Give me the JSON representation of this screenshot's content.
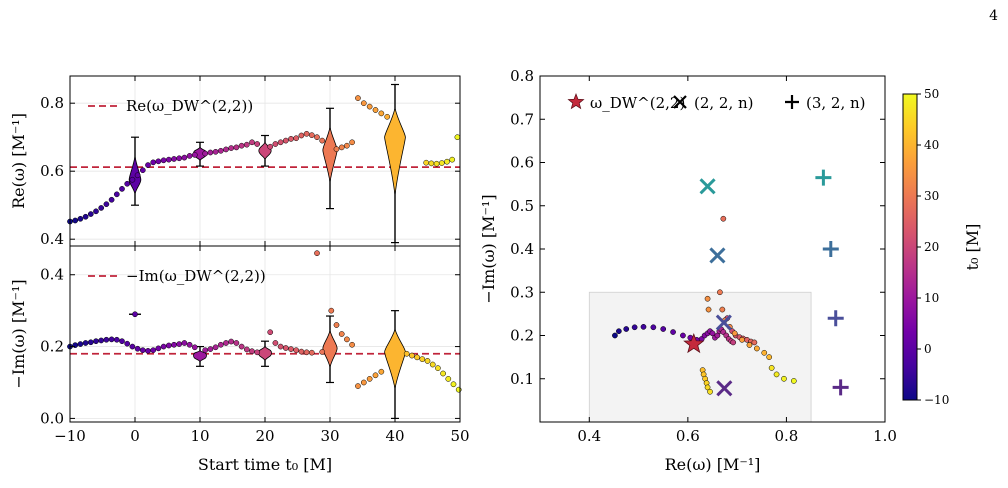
{
  "page_number": "4",
  "colors": {
    "dw_line": "#c0243a",
    "cmap": [
      "#0d0887",
      "#46039f",
      "#7201a8",
      "#9c179e",
      "#bd3786",
      "#d8576b",
      "#ed7953",
      "#fb9f3a",
      "#fdca26",
      "#f0f921"
    ],
    "violin_face": "#e8e8e8"
  },
  "chart_data": [
    {
      "id": "re-vs-t0",
      "type": "scatter",
      "xlabel": "Start time t₀ [M]",
      "ylabel": "Re(ω) [M⁻¹]",
      "xlim": [
        -10,
        50
      ],
      "ylim": [
        0.38,
        0.88
      ],
      "xticks": [
        "−10",
        "0",
        "10",
        "20",
        "30",
        "40",
        "50"
      ],
      "yticks": [
        "0.4",
        "0.6",
        "0.8"
      ],
      "grid": true,
      "legend": {
        "position": "top-left",
        "entries": [
          "Re(ω_DW^(2,2))"
        ]
      },
      "hline": {
        "label": "Re(ω_DW^(2,2))",
        "y": 0.612
      },
      "points": [
        [
          -10,
          0.452
        ],
        [
          -9.2,
          0.455
        ],
        [
          -8.4,
          0.46
        ],
        [
          -7.6,
          0.466
        ],
        [
          -6.8,
          0.474
        ],
        [
          -6,
          0.482
        ],
        [
          -5.2,
          0.492
        ],
        [
          -4.4,
          0.503
        ],
        [
          -3.6,
          0.516
        ],
        [
          -2.8,
          0.532
        ],
        [
          -2,
          0.548
        ],
        [
          -1.2,
          0.563
        ],
        [
          -0.4,
          0.575
        ],
        [
          0.4,
          0.588
        ],
        [
          1.2,
          0.603
        ],
        [
          2,
          0.618
        ],
        [
          2.8,
          0.626
        ],
        [
          3.6,
          0.629
        ],
        [
          4.4,
          0.632
        ],
        [
          5.2,
          0.634
        ],
        [
          6,
          0.636
        ],
        [
          6.8,
          0.638
        ],
        [
          7.6,
          0.64
        ],
        [
          8.4,
          0.645
        ],
        [
          9.2,
          0.648
        ],
        [
          10.8,
          0.652
        ],
        [
          11.6,
          0.655
        ],
        [
          12.4,
          0.657
        ],
        [
          13.2,
          0.66
        ],
        [
          14,
          0.664
        ],
        [
          14.8,
          0.668
        ],
        [
          15.6,
          0.67
        ],
        [
          16.4,
          0.675
        ],
        [
          17.2,
          0.678
        ],
        [
          18,
          0.685
        ],
        [
          18.8,
          0.68
        ],
        [
          20.8,
          0.672
        ],
        [
          21.6,
          0.68
        ],
        [
          22.4,
          0.685
        ],
        [
          23.2,
          0.69
        ],
        [
          24,
          0.695
        ],
        [
          24.8,
          0.697
        ],
        [
          25.6,
          0.705
        ],
        [
          26.4,
          0.71
        ],
        [
          27.2,
          0.706
        ],
        [
          28,
          0.7
        ],
        [
          28.8,
          0.69
        ],
        [
          31,
          0.665
        ],
        [
          31.8,
          0.67
        ],
        [
          32.6,
          0.675
        ],
        [
          33.4,
          0.685
        ],
        [
          34.3,
          0.815
        ],
        [
          35.2,
          0.8
        ],
        [
          36.1,
          0.79
        ],
        [
          37,
          0.78
        ],
        [
          37.9,
          0.77
        ],
        [
          38.8,
          0.76
        ],
        [
          44.8,
          0.625
        ],
        [
          45.6,
          0.623
        ],
        [
          46.4,
          0.622
        ],
        [
          47.2,
          0.624
        ],
        [
          48,
          0.628
        ],
        [
          48.8,
          0.634
        ],
        [
          49.6,
          0.7
        ]
      ],
      "violins": [
        {
          "t0": 0,
          "center": 0.575,
          "min": 0.5,
          "max": 0.7,
          "half_width": 0.9
        },
        {
          "t0": 10,
          "center": 0.652,
          "min": 0.615,
          "max": 0.685,
          "half_width": 1.0
        },
        {
          "t0": 20,
          "center": 0.66,
          "min": 0.615,
          "max": 0.705,
          "half_width": 0.95
        },
        {
          "t0": 30,
          "center": 0.662,
          "min": 0.49,
          "max": 0.785,
          "half_width": 1.1
        },
        {
          "t0": 40,
          "center": 0.7,
          "min": 0.39,
          "max": 0.855,
          "half_width": 1.6
        }
      ]
    },
    {
      "id": "negim-vs-t0",
      "type": "scatter",
      "xlabel": "Start time t₀ [M]",
      "ylabel": "−Im(ω) [M⁻¹]",
      "xlim": [
        -10,
        50
      ],
      "ylim": [
        -0.01,
        0.48
      ],
      "xticks": [
        "−10",
        "0",
        "10",
        "20",
        "30",
        "40",
        "50"
      ],
      "yticks": [
        "0.0",
        "0.2",
        "0.4"
      ],
      "grid": true,
      "legend": {
        "position": "top-left",
        "entries": [
          "−Im(ω_DW^(2,2))"
        ]
      },
      "hline": {
        "label": "−Im(ω_DW^(2,2))",
        "y": 0.18
      },
      "points": [
        [
          -10,
          0.2
        ],
        [
          -9.2,
          0.204
        ],
        [
          -8.4,
          0.207
        ],
        [
          -7.6,
          0.21
        ],
        [
          -6.8,
          0.212
        ],
        [
          -6,
          0.215
        ],
        [
          -5.2,
          0.217
        ],
        [
          -4.4,
          0.219
        ],
        [
          -3.6,
          0.22
        ],
        [
          -2.8,
          0.219
        ],
        [
          -2,
          0.215
        ],
        [
          -1.2,
          0.208
        ],
        [
          -0.4,
          0.2
        ],
        [
          0.4,
          0.194
        ],
        [
          1.2,
          0.19
        ],
        [
          2,
          0.188
        ],
        [
          2.8,
          0.19
        ],
        [
          3.6,
          0.195
        ],
        [
          4.4,
          0.2
        ],
        [
          5.2,
          0.203
        ],
        [
          6,
          0.205
        ],
        [
          6.8,
          0.207
        ],
        [
          7.6,
          0.21
        ],
        [
          8.4,
          0.205
        ],
        [
          9.2,
          0.198
        ],
        [
          10.8,
          0.19
        ],
        [
          11.6,
          0.193
        ],
        [
          12.4,
          0.198
        ],
        [
          13.2,
          0.205
        ],
        [
          14,
          0.21
        ],
        [
          14.8,
          0.214
        ],
        [
          15.6,
          0.21
        ],
        [
          16.4,
          0.2
        ],
        [
          17.2,
          0.192
        ],
        [
          18,
          0.187
        ],
        [
          18.8,
          0.184
        ],
        [
          20.8,
          0.24
        ],
        [
          21.6,
          0.21
        ],
        [
          22.4,
          0.2
        ],
        [
          23.2,
          0.196
        ],
        [
          24,
          0.193
        ],
        [
          24.8,
          0.19
        ],
        [
          25.6,
          0.186
        ],
        [
          26.4,
          0.184
        ],
        [
          27.2,
          0.183
        ],
        [
          28,
          0.46
        ],
        [
          28.8,
          0.185
        ],
        [
          30.2,
          0.3
        ],
        [
          31,
          0.26
        ],
        [
          31.8,
          0.235
        ],
        [
          32.6,
          0.22
        ],
        [
          33.4,
          0.205
        ],
        [
          34.3,
          0.09
        ],
        [
          35.2,
          0.1
        ],
        [
          36.1,
          0.11
        ],
        [
          37,
          0.12
        ],
        [
          37.9,
          0.13
        ],
        [
          41.8,
          0.18
        ],
        [
          42.6,
          0.175
        ],
        [
          43.4,
          0.17
        ],
        [
          44.2,
          0.165
        ],
        [
          45,
          0.16
        ],
        [
          45.8,
          0.15
        ],
        [
          46.6,
          0.14
        ],
        [
          47.4,
          0.125
        ],
        [
          48.2,
          0.11
        ],
        [
          49,
          0.095
        ],
        [
          49.8,
          0.08
        ]
      ],
      "extra_marker": {
        "t0": 0,
        "value": 0.29
      },
      "violins": [
        {
          "t0": 10,
          "center": 0.175,
          "min": 0.145,
          "max": 0.2,
          "half_width": 1.0
        },
        {
          "t0": 20,
          "center": 0.182,
          "min": 0.145,
          "max": 0.215,
          "half_width": 1.0
        },
        {
          "t0": 30,
          "center": 0.195,
          "min": 0.1,
          "max": 0.285,
          "half_width": 1.1
        },
        {
          "t0": 40,
          "center": 0.185,
          "min": 0.0,
          "max": 0.3,
          "half_width": 1.6
        }
      ]
    },
    {
      "id": "complex-plane",
      "type": "scatter",
      "xlabel": "Re(ω) [M⁻¹]",
      "ylabel": "−Im(ω) [M⁻¹]",
      "xlim": [
        0.3,
        1.0
      ],
      "ylim": [
        0.0,
        0.8
      ],
      "xticks": [
        "0.4",
        "0.6",
        "0.8",
        "1.0"
      ],
      "yticks": [
        "0.1",
        "0.2",
        "0.3",
        "0.4",
        "0.5",
        "0.6",
        "0.7",
        "0.8"
      ],
      "grid": false,
      "legend": {
        "position": "top",
        "entries": [
          "ω_DW^(2,2)",
          "(2, 2, n)",
          "(3, 2, n)"
        ]
      },
      "colorbar": {
        "label": "t₀ [M]",
        "range": [
          -10,
          50
        ],
        "ticks": [
          "−10",
          "0",
          "10",
          "20",
          "30",
          "40",
          "50"
        ]
      },
      "inset_box": {
        "x": [
          0.4,
          0.85
        ],
        "y": [
          0.0,
          0.3
        ]
      },
      "dw_star": {
        "re": 0.612,
        "im": 0.18
      },
      "qnm_22n": [
        {
          "n": 0,
          "re": 0.674,
          "im": 0.078
        },
        {
          "n": 1,
          "re": 0.673,
          "im": 0.23
        },
        {
          "n": 2,
          "re": 0.66,
          "im": 0.385
        },
        {
          "n": 3,
          "re": 0.64,
          "im": 0.545
        }
      ],
      "qnm_32n": [
        {
          "n": 0,
          "re": 0.91,
          "im": 0.08
        },
        {
          "n": 1,
          "re": 0.9,
          "im": 0.24
        },
        {
          "n": 2,
          "re": 0.89,
          "im": 0.4
        },
        {
          "n": 3,
          "re": 0.875,
          "im": 0.565
        }
      ],
      "points": [
        [
          0.452,
          0.2,
          -10
        ],
        [
          0.46,
          0.21,
          -8.5
        ],
        [
          0.475,
          0.215,
          -7
        ],
        [
          0.492,
          0.219,
          -5.5
        ],
        [
          0.51,
          0.22,
          -4
        ],
        [
          0.53,
          0.219,
          -2.5
        ],
        [
          0.55,
          0.215,
          -1
        ],
        [
          0.57,
          0.208,
          0.5
        ],
        [
          0.59,
          0.2,
          2
        ],
        [
          0.605,
          0.195,
          3
        ],
        [
          0.618,
          0.19,
          4
        ],
        [
          0.628,
          0.192,
          5
        ],
        [
          0.634,
          0.2,
          6
        ],
        [
          0.64,
          0.205,
          7
        ],
        [
          0.645,
          0.21,
          8
        ],
        [
          0.65,
          0.205,
          9
        ],
        [
          0.655,
          0.195,
          10.5
        ],
        [
          0.66,
          0.2,
          11.5
        ],
        [
          0.664,
          0.21,
          12.5
        ],
        [
          0.668,
          0.214,
          13.5
        ],
        [
          0.672,
          0.208,
          14.5
        ],
        [
          0.678,
          0.2,
          15.5
        ],
        [
          0.683,
          0.192,
          16.5
        ],
        [
          0.688,
          0.187,
          17.5
        ],
        [
          0.692,
          0.184,
          18.5
        ],
        [
          0.68,
          0.24,
          20.5
        ],
        [
          0.69,
          0.21,
          21.5
        ],
        [
          0.697,
          0.2,
          22.5
        ],
        [
          0.705,
          0.196,
          23.5
        ],
        [
          0.712,
          0.193,
          24.5
        ],
        [
          0.72,
          0.19,
          25.5
        ],
        [
          0.728,
          0.186,
          26.5
        ],
        [
          0.735,
          0.184,
          27.5
        ],
        [
          0.672,
          0.47,
          28
        ],
        [
          0.665,
          0.3,
          30
        ],
        [
          0.67,
          0.26,
          31
        ],
        [
          0.675,
          0.235,
          32
        ],
        [
          0.685,
          0.22,
          33
        ],
        [
          0.64,
          0.285,
          34
        ],
        [
          0.642,
          0.26,
          34.5
        ],
        [
          0.695,
          0.205,
          35.5
        ],
        [
          0.71,
          0.19,
          36.5
        ],
        [
          0.725,
          0.178,
          37.5
        ],
        [
          0.74,
          0.17,
          38.5
        ],
        [
          0.755,
          0.16,
          39.5
        ],
        [
          0.765,
          0.15,
          40.5
        ],
        [
          0.63,
          0.12,
          41.5
        ],
        [
          0.632,
          0.11,
          42.5
        ],
        [
          0.635,
          0.1,
          43.5
        ],
        [
          0.638,
          0.09,
          44.5
        ],
        [
          0.64,
          0.08,
          45.5
        ],
        [
          0.645,
          0.07,
          46.5
        ],
        [
          0.77,
          0.125,
          47
        ],
        [
          0.78,
          0.11,
          48
        ],
        [
          0.795,
          0.1,
          49
        ],
        [
          0.815,
          0.095,
          50
        ]
      ]
    }
  ]
}
